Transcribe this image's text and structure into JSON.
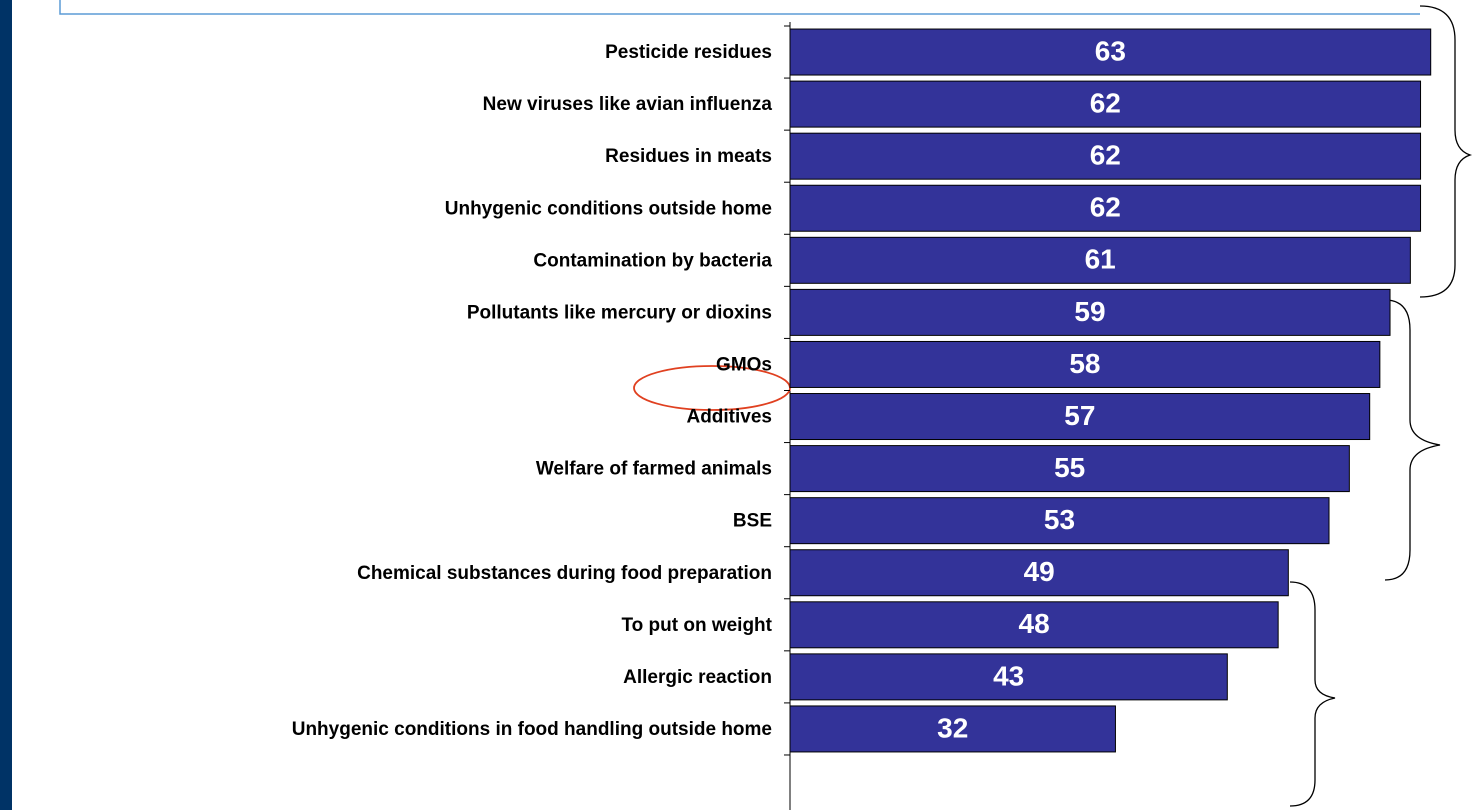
{
  "chart_data": {
    "type": "bar",
    "orientation": "horizontal",
    "categories": [
      "Pesticide residues",
      "New viruses like avian influenza",
      "Residues in meats",
      "Unhygenic conditions outside home",
      "Contamination by bacteria",
      "Pollutants like mercury or dioxins",
      "GMOs",
      "Additives",
      "Welfare of farmed animals",
      "BSE",
      "Chemical substances during food preparation",
      "To put on weight",
      "Allergic reaction",
      "Unhygenic conditions in food handling outside home"
    ],
    "values": [
      63,
      62,
      62,
      62,
      61,
      59,
      58,
      57,
      55,
      53,
      49,
      48,
      43,
      32
    ],
    "color": "#333399"
  }
}
